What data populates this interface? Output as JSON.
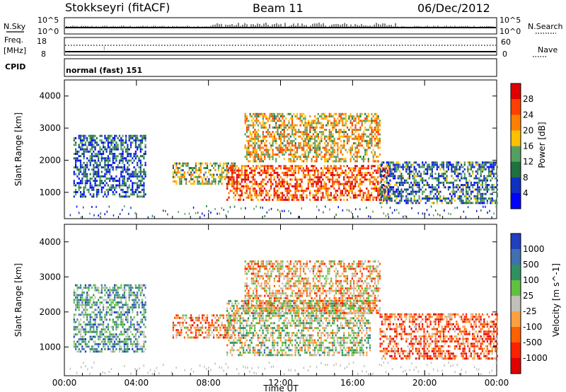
{
  "header": {
    "station": "Stokkseyri (fitACF)",
    "beam": "Beam 11",
    "date": "06/Dec/2012"
  },
  "strips": {
    "nsky_label": "N.Sky",
    "nsky_ticks": [
      "10^5",
      "10^0"
    ],
    "nsearch_label": "N.Search",
    "nsearch_ticks": [
      "10^5",
      "10^0"
    ],
    "freq_label_1": "Freq.",
    "freq_label_2": "[MHz]",
    "freq_ticks": [
      "18",
      "8"
    ],
    "nave_label": "Nave",
    "nave_ticks": [
      "60",
      "0"
    ],
    "cpid_label": "CPID",
    "cpid_value": "normal (fast) 151"
  },
  "chart_data": [
    {
      "type": "heatmap",
      "name": "power",
      "ylabel": "Slant Range [km]",
      "xlabel": "Time UT",
      "yticks": [
        "4000",
        "3000",
        "2000",
        "1000"
      ],
      "xticks": [
        "00:00",
        "04:00",
        "08:00",
        "12:00",
        "16:00",
        "20:00",
        "00:00"
      ],
      "ylim": [
        180,
        4500
      ],
      "xlim": [
        0,
        24
      ],
      "colorbar": {
        "label": "Power [dB]",
        "ticks": [
          "28",
          "24",
          "20",
          "16",
          "12",
          "8",
          "4"
        ],
        "colors": [
          "#e00000",
          "#ff4000",
          "#ff8000",
          "#ffc000",
          "#55a060",
          "#207040",
          "#1030c0",
          "#0000ff"
        ]
      },
      "regions": [
        {
          "t": [
            0.5,
            4.5
          ],
          "r": [
            900,
            2800
          ],
          "level": 0.25
        },
        {
          "t": [
            6.0,
            9.5
          ],
          "r": [
            1300,
            2000
          ],
          "level": 0.45
        },
        {
          "t": [
            9.0,
            18.0
          ],
          "r": [
            800,
            1900
          ],
          "level": 0.8
        },
        {
          "t": [
            10.0,
            17.5
          ],
          "r": [
            2000,
            3500
          ],
          "level": 0.6
        },
        {
          "t": [
            17.5,
            24.0
          ],
          "r": [
            700,
            2000
          ],
          "level": 0.3
        }
      ]
    },
    {
      "type": "heatmap",
      "name": "velocity",
      "ylabel": "Slant Range [km]",
      "xlabel": "Time UT",
      "yticks": [
        "4000",
        "3000",
        "2000",
        "1000"
      ],
      "xticks": [
        "00:00",
        "04:00",
        "08:00",
        "12:00",
        "16:00",
        "20:00",
        "00:00"
      ],
      "ylim": [
        180,
        4500
      ],
      "xlim": [
        0,
        24
      ],
      "colorbar": {
        "label": "Velocity [m s^-1]",
        "ticks": [
          "1000",
          "500",
          "100",
          "25",
          "-25",
          "-100",
          "-500",
          "-1000"
        ],
        "colors": [
          "#2040c0",
          "#4070b0",
          "#309060",
          "#60c040",
          "#c0c0b8",
          "#ffa040",
          "#ff6000",
          "#ff2000",
          "#e00000"
        ]
      },
      "regions": [
        {
          "t": [
            0.5,
            4.5
          ],
          "r": [
            900,
            2800
          ],
          "level": 0.3
        },
        {
          "t": [
            6.0,
            9.5
          ],
          "r": [
            1300,
            2000
          ],
          "level": 0.65
        },
        {
          "t": [
            9.0,
            17.0
          ],
          "r": [
            800,
            2400
          ],
          "level": 0.45
        },
        {
          "t": [
            10.0,
            17.5
          ],
          "r": [
            2000,
            3500
          ],
          "level": 0.6
        },
        {
          "t": [
            17.5,
            24.0
          ],
          "r": [
            700,
            2000
          ],
          "level": 0.75
        }
      ]
    }
  ]
}
